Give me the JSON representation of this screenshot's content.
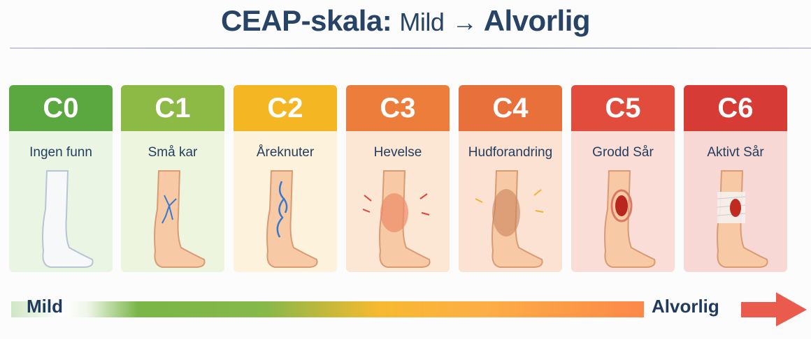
{
  "title": {
    "bold": "CEAP-skala:",
    "mid": "Mild",
    "arrow": "→",
    "end": "Alvorlig"
  },
  "stages": [
    {
      "code": "C0",
      "label": "Ingen funn",
      "color": "#5aa83f",
      "bg": "#eaf5e3",
      "icon": "healthy-leg-icon"
    },
    {
      "code": "C1",
      "label": "Små kar",
      "color": "#8cba45",
      "bg": "#eef5df",
      "icon": "spider-veins-leg-icon"
    },
    {
      "code": "C2",
      "label": "Åreknuter",
      "color": "#f4b622",
      "bg": "#fdf3dc",
      "icon": "varicose-veins-leg-icon"
    },
    {
      "code": "C3",
      "label": "Hevelse",
      "color": "#ec7d3a",
      "bg": "#fce6d4",
      "icon": "swollen-leg-icon"
    },
    {
      "code": "C4",
      "label": "Hudforandring",
      "color": "#e8703a",
      "bg": "#fbe2d2",
      "icon": "skin-change-leg-icon"
    },
    {
      "code": "C5",
      "label": "Grodd Sår",
      "color": "#e24c3d",
      "bg": "#f9ddd6",
      "icon": "healed-ulcer-leg-icon"
    },
    {
      "code": "C6",
      "label": "Aktivt Sår",
      "color": "#d63b36",
      "bg": "#f8d8d5",
      "icon": "active-ulcer-leg-icon"
    }
  ],
  "scale": {
    "start": "Mild",
    "end": "Alvorlig",
    "arrow_color": "#ea5a4d"
  }
}
